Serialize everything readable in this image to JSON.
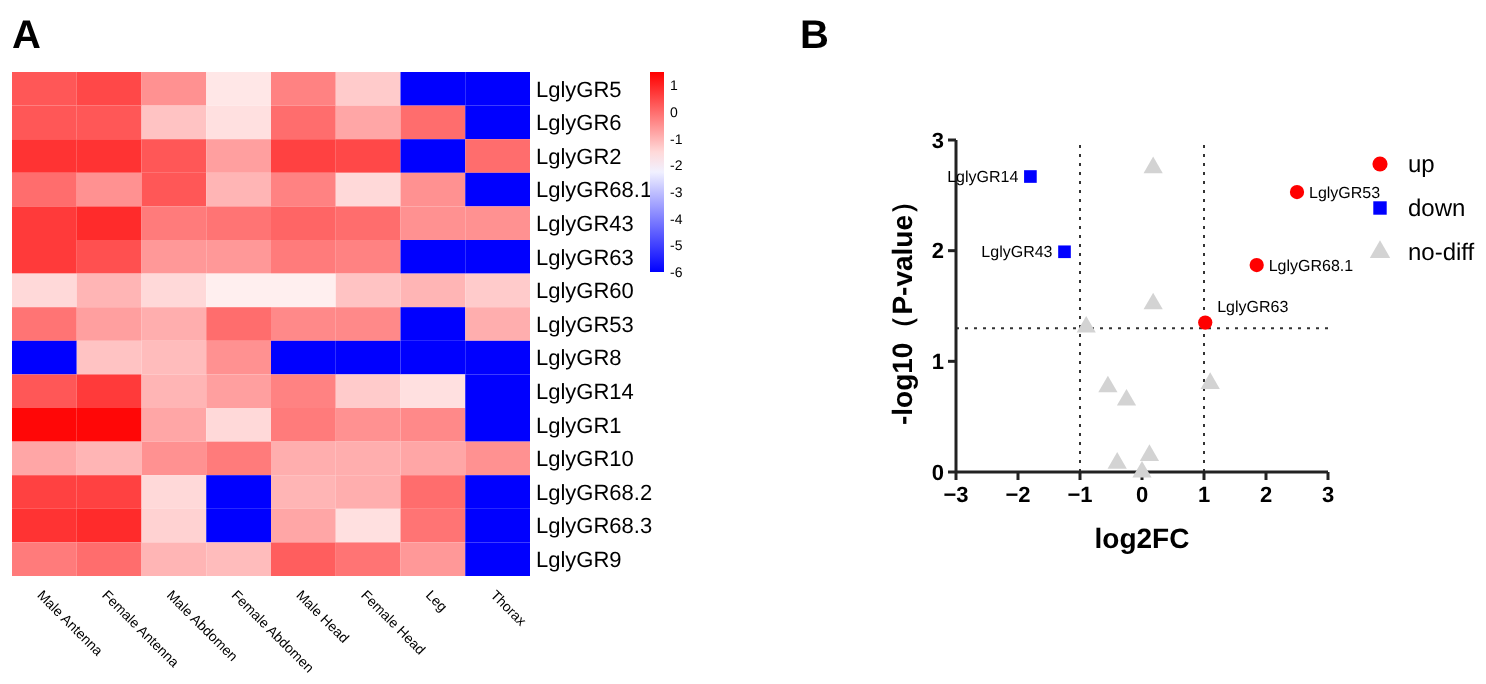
{
  "chart_data": [
    {
      "type": "heatmap",
      "title": "A",
      "categories": [
        "Male Antenna",
        "Female Antenna",
        "Male Abdomen",
        "Female Abdomen",
        "Male Head",
        "Female Head",
        "Leg",
        "Thorax"
      ],
      "y_categories": [
        "LglyGR5",
        "LglyGR6",
        "LglyGR2",
        "LglyGR68.1",
        "LglyGR43",
        "LglyGR63",
        "LglyGR60",
        "LglyGR53",
        "LglyGR8",
        "LglyGR14",
        "LglyGR1",
        "LglyGR10",
        "LglyGR68.2",
        "LglyGR68.3",
        "LglyGR9"
      ],
      "cells": [
        [
          0.3,
          0.5,
          -0.5,
          -1.7,
          -0.3,
          -1.3,
          -6,
          -6
        ],
        [
          0.3,
          0.3,
          -1.2,
          -1.6,
          0,
          -0.8,
          0,
          -6
        ],
        [
          0.8,
          0.8,
          0.3,
          -0.7,
          0.6,
          0.5,
          -6,
          0
        ],
        [
          0,
          -0.5,
          0.3,
          -1,
          -0.3,
          -1.5,
          -0.5,
          -6
        ],
        [
          0.7,
          0.9,
          -0.2,
          -0.1,
          0.1,
          0,
          -0.5,
          -0.5
        ],
        [
          0.7,
          0.4,
          -0.6,
          -0.6,
          -0.2,
          -0.3,
          -6,
          -6
        ],
        [
          -1.5,
          -1,
          -1.5,
          -1.8,
          -1.8,
          -1.2,
          -1,
          -1.3
        ],
        [
          -0.1,
          -0.7,
          -0.9,
          0,
          -0.4,
          -0.4,
          -6,
          -0.9
        ],
        [
          -6,
          -1.2,
          -1.1,
          -0.5,
          -6,
          -6,
          -6,
          -6
        ],
        [
          0.3,
          0.7,
          -1,
          -0.7,
          -0.3,
          -1.3,
          -1.6,
          -6
        ],
        [
          1.4,
          1.4,
          -0.8,
          -1.5,
          -0.2,
          -0.5,
          -0.4,
          -6
        ],
        [
          -0.8,
          -1,
          -0.5,
          -0.2,
          -0.9,
          -0.9,
          -0.8,
          -0.5
        ],
        [
          0.6,
          0.6,
          -1.5,
          -6,
          -1,
          -0.9,
          0,
          -6
        ],
        [
          0.8,
          0.9,
          -1.4,
          -6,
          -0.8,
          -1.6,
          -0.1,
          -6
        ],
        [
          -0.2,
          0,
          -1,
          -1.1,
          0.2,
          -0.1,
          -0.6,
          -6
        ]
      ],
      "clim": [
        -6,
        1.5
      ],
      "cticks": [
        1,
        0,
        -1,
        -2,
        -3,
        -4,
        -5,
        -6
      ]
    },
    {
      "type": "scatter",
      "title": "B",
      "xlabel": "log2FC",
      "ylabel": "-log10（P-value）",
      "xlim": [
        -3,
        3
      ],
      "xticks": [
        -3,
        -2,
        -1,
        0,
        1,
        2,
        3
      ],
      "ylim": [
        0,
        3
      ],
      "yticks": [
        0,
        1,
        2,
        3
      ],
      "grid": false,
      "legend": "right",
      "series": [
        {
          "name": "up",
          "color": "#ff0000",
          "marker": "circle",
          "x": [
            2.5,
            1.85,
            1.02
          ],
          "values": [
            2.53,
            1.87,
            1.35
          ]
        },
        {
          "name": "down",
          "color": "#0000ff",
          "marker": "square",
          "x": [
            -1.8,
            -1.25
          ],
          "values": [
            2.67,
            1.99
          ]
        },
        {
          "name": "no-diff",
          "color": "#d3d3d3",
          "marker": "triangle",
          "x": [
            0.18,
            0.18,
            -0.9,
            -0.55,
            -0.25,
            -0.4,
            0.12,
            0,
            1.1
          ],
          "values": [
            2.75,
            1.52,
            1.31,
            0.77,
            0.65,
            0.08,
            0.15,
            0,
            0.8
          ]
        }
      ],
      "ref_lines": [
        {
          "axis": "x",
          "value": -1,
          "line_style": "dotted"
        },
        {
          "axis": "x",
          "value": 1,
          "line_style": "dotted"
        },
        {
          "axis": "y",
          "value": 1.3,
          "line_style": "dotted"
        }
      ],
      "annotations": [
        {
          "text": "LglyGR53",
          "x": 2.5,
          "y": 2.53
        },
        {
          "text": "LglyGR68.1",
          "x": 1.85,
          "y": 1.87
        },
        {
          "text": "LglyGR63",
          "x": 1.02,
          "y": 1.35
        },
        {
          "text": "LglyGR14",
          "x": -1.8,
          "y": 2.67
        },
        {
          "text": "LglyGR43",
          "x": -1.25,
          "y": 1.99
        }
      ]
    }
  ]
}
